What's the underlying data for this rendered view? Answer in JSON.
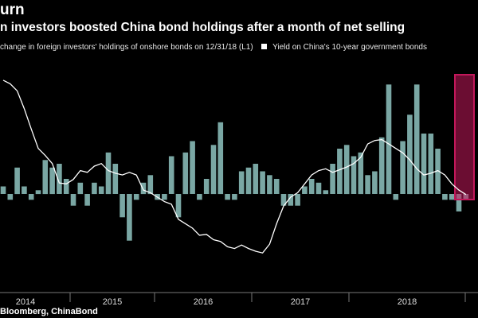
{
  "header": {
    "kicker": "urn",
    "title": "n investors boosted China bond holdings after a month of net selling"
  },
  "legend": {
    "bars_label": "change in foreign investors' holdings of onshore bonds on 12/31/18 (L1)",
    "line_label": "Yield on China's 10-year government bonds"
  },
  "footer": {
    "source": "Bloomberg, ChinaBond"
  },
  "colors": {
    "bar": "#7aa7a4",
    "line": "#ffffff",
    "highlight": "#c2185b",
    "axis": "#777777"
  },
  "chart_data": {
    "type": "bar",
    "x_tick_labels": [
      "2014",
      "2015",
      "2016",
      "2017",
      "2018"
    ],
    "bars_note": "monthly net change in foreign holdings, units not shown",
    "series": [
      {
        "kind": "bar",
        "values": [
          2,
          -1,
          7,
          2,
          -1,
          1,
          9,
          7,
          8,
          4,
          -2,
          3,
          -2,
          3,
          2,
          11,
          8,
          -4,
          -8,
          -1,
          3,
          5,
          -1,
          -1,
          10,
          -4,
          11,
          14,
          -1,
          4,
          13,
          19,
          -1,
          -1,
          6,
          7,
          8,
          6,
          5,
          4,
          -2,
          -2,
          -2,
          2,
          4,
          3,
          1,
          8,
          12,
          13,
          10,
          11,
          5,
          6,
          15,
          29,
          -1,
          14,
          21,
          29,
          16,
          16,
          12,
          -1,
          -1,
          -3,
          -1
        ]
      },
      {
        "kind": "line",
        "values": [
          4.62,
          4.58,
          4.5,
          4.3,
          4.07,
          3.85,
          3.77,
          3.68,
          3.46,
          3.45,
          3.5,
          3.6,
          3.58,
          3.65,
          3.68,
          3.6,
          3.57,
          3.55,
          3.58,
          3.55,
          3.38,
          3.35,
          3.3,
          3.25,
          3.22,
          3.05,
          3.0,
          2.95,
          2.87,
          2.88,
          2.82,
          2.8,
          2.74,
          2.72,
          2.76,
          2.72,
          2.69,
          2.67,
          2.77,
          3.0,
          3.2,
          3.3,
          3.35,
          3.45,
          3.55,
          3.6,
          3.62,
          3.58,
          3.61,
          3.64,
          3.68,
          3.75,
          3.9,
          3.94,
          3.95,
          3.9,
          3.85,
          3.8,
          3.72,
          3.62,
          3.55,
          3.57,
          3.6,
          3.55,
          3.45,
          3.38,
          3.33
        ]
      }
    ],
    "bars_range": [
      -12,
      32
    ],
    "line_range": [
      2.6,
      4.7
    ],
    "grid": false,
    "legend_position": "top"
  }
}
